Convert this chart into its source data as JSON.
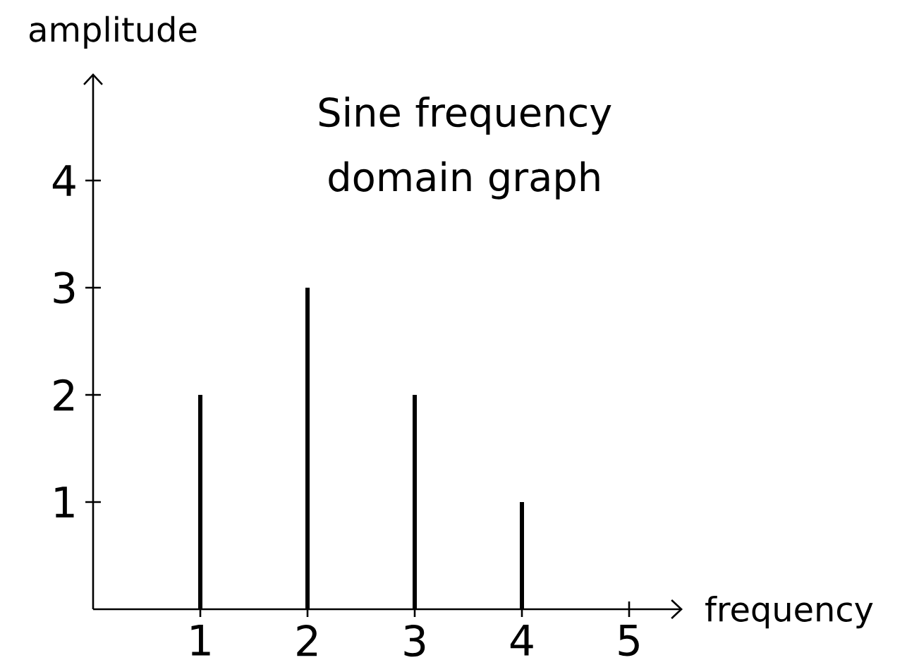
{
  "chart_data": {
    "type": "bar",
    "title": "Sine frequency domain graph",
    "xlabel": "frequency",
    "ylabel": "amplitude",
    "x": [
      1,
      2,
      3,
      4
    ],
    "values": [
      2,
      3,
      2,
      1
    ],
    "color": "#000000",
    "xlim": [
      0,
      5.5
    ],
    "ylim": [
      0,
      5
    ],
    "xticks": [
      1,
      2,
      3,
      4,
      5
    ],
    "yticks": [
      1,
      2,
      3,
      4
    ]
  }
}
